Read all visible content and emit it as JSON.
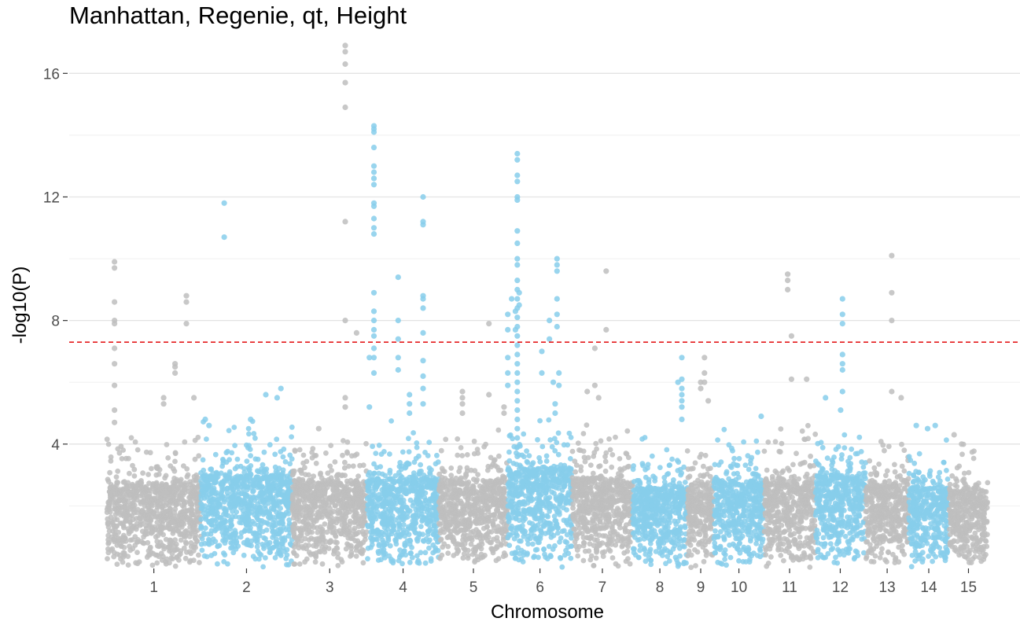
{
  "chart_data": {
    "type": "scatter",
    "title": "Manhattan, Regenie, qt, Height",
    "xlabel": "Chromosome",
    "ylabel": "-log10(P)",
    "ylim": [
      0,
      17
    ],
    "y_ticks": [
      4,
      8,
      12,
      16
    ],
    "threshold": 7.3,
    "threshold_color": "#e41a1c",
    "colors": {
      "odd": "#bebebe",
      "even": "#87ceeb"
    },
    "grid": "horizontal",
    "legend": "none",
    "chromosomes": [
      {
        "label": "1",
        "x_min": 0,
        "x_max": 248,
        "tick": 124,
        "base_max": 2.7,
        "points": [
          [
            20,
            9.9
          ],
          [
            20,
            9.7
          ],
          [
            20,
            8.6
          ],
          [
            20,
            8.0
          ],
          [
            20,
            7.9
          ],
          [
            20,
            7.1
          ],
          [
            20,
            6.6
          ],
          [
            20,
            5.9
          ],
          [
            20,
            5.1
          ],
          [
            20,
            4.7
          ],
          [
            180,
            6.6
          ],
          [
            180,
            6.5
          ],
          [
            180,
            6.3
          ],
          [
            210,
            8.8
          ],
          [
            210,
            8.6
          ],
          [
            210,
            7.9
          ],
          [
            150,
            5.5
          ],
          [
            150,
            5.3
          ],
          [
            230,
            5.5
          ]
        ]
      },
      {
        "label": "2",
        "x_min": 248,
        "x_max": 490,
        "tick": 369,
        "base_max": 3.0,
        "points": [
          [
            310,
            11.8
          ],
          [
            310,
            10.7
          ],
          [
            260,
            4.8
          ],
          [
            270,
            4.6
          ],
          [
            420,
            5.6
          ],
          [
            460,
            5.8
          ],
          [
            450,
            5.5
          ],
          [
            380,
            4.8
          ]
        ]
      },
      {
        "label": "3",
        "x_min": 490,
        "x_max": 688,
        "tick": 589,
        "base_max": 2.8,
        "points": [
          [
            630,
            16.9
          ],
          [
            630,
            16.7
          ],
          [
            630,
            16.3
          ],
          [
            630,
            15.7
          ],
          [
            630,
            14.9
          ],
          [
            630,
            11.2
          ],
          [
            630,
            8.0
          ],
          [
            630,
            5.5
          ],
          [
            630,
            5.2
          ],
          [
            660,
            7.6
          ],
          [
            560,
            4.5
          ]
        ]
      },
      {
        "label": "4",
        "x_min": 688,
        "x_max": 878,
        "tick": 783,
        "base_max": 2.9,
        "points": [
          [
            706,
            14.3
          ],
          [
            706,
            14.2
          ],
          [
            706,
            14.1
          ],
          [
            706,
            13.6
          ],
          [
            706,
            13.0
          ],
          [
            706,
            12.8
          ],
          [
            706,
            12.6
          ],
          [
            706,
            12.4
          ],
          [
            706,
            11.8
          ],
          [
            706,
            11.7
          ],
          [
            706,
            11.3
          ],
          [
            706,
            11.0
          ],
          [
            706,
            10.8
          ],
          [
            706,
            8.9
          ],
          [
            706,
            8.3
          ],
          [
            706,
            8.0
          ],
          [
            706,
            7.7
          ],
          [
            706,
            7.5
          ],
          [
            706,
            7.1
          ],
          [
            706,
            6.8
          ],
          [
            706,
            6.3
          ],
          [
            694,
            6.8
          ],
          [
            694,
            5.2
          ],
          [
            770,
            9.4
          ],
          [
            770,
            8.0
          ],
          [
            770,
            7.4
          ],
          [
            770,
            6.8
          ],
          [
            770,
            6.4
          ],
          [
            800,
            5.6
          ],
          [
            800,
            5.3
          ],
          [
            800,
            5.0
          ],
          [
            836,
            12.0
          ],
          [
            836,
            11.2
          ],
          [
            836,
            11.1
          ],
          [
            836,
            8.8
          ],
          [
            836,
            8.7
          ],
          [
            836,
            8.4
          ],
          [
            836,
            7.6
          ],
          [
            836,
            6.7
          ],
          [
            836,
            6.2
          ],
          [
            836,
            5.8
          ],
          [
            836,
            5.3
          ]
        ]
      },
      {
        "label": "5",
        "x_min": 878,
        "x_max": 1060,
        "tick": 969,
        "base_max": 2.8,
        "points": [
          [
            940,
            5.7
          ],
          [
            940,
            5.5
          ],
          [
            940,
            5.3
          ],
          [
            940,
            5.0
          ],
          [
            1010,
            7.9
          ],
          [
            1010,
            5.6
          ],
          [
            1050,
            5.2
          ],
          [
            1050,
            5.0
          ]
        ]
      },
      {
        "label": "6",
        "x_min": 1060,
        "x_max": 1231,
        "tick": 1145,
        "base_max": 3.2,
        "points": [
          [
            1060,
            6.8
          ],
          [
            1060,
            6.3
          ],
          [
            1060,
            5.9
          ],
          [
            1060,
            7.7
          ],
          [
            1060,
            8.2
          ],
          [
            1070,
            8.7
          ],
          [
            1085,
            13.4
          ],
          [
            1085,
            13.2
          ],
          [
            1085,
            12.7
          ],
          [
            1085,
            12.5
          ],
          [
            1085,
            12.0
          ],
          [
            1085,
            11.9
          ],
          [
            1085,
            10.9
          ],
          [
            1085,
            10.5
          ],
          [
            1085,
            10.0
          ],
          [
            1085,
            9.8
          ],
          [
            1085,
            9.3
          ],
          [
            1085,
            9.0
          ],
          [
            1085,
            8.7
          ],
          [
            1085,
            8.4
          ],
          [
            1085,
            8.1
          ],
          [
            1085,
            7.8
          ],
          [
            1085,
            7.5
          ],
          [
            1085,
            7.2
          ],
          [
            1085,
            6.9
          ],
          [
            1085,
            6.6
          ],
          [
            1085,
            6.3
          ],
          [
            1085,
            6.0
          ],
          [
            1085,
            5.7
          ],
          [
            1085,
            5.4
          ],
          [
            1085,
            5.1
          ],
          [
            1085,
            4.8
          ],
          [
            1085,
            4.5
          ],
          [
            1085,
            4.2
          ],
          [
            1085,
            3.9
          ],
          [
            1085,
            3.6
          ],
          [
            1090,
            8.9
          ],
          [
            1090,
            8.5
          ],
          [
            1080,
            8.3
          ],
          [
            1080,
            7.7
          ],
          [
            1150,
            7.0
          ],
          [
            1150,
            6.3
          ],
          [
            1170,
            8.0
          ],
          [
            1170,
            7.4
          ],
          [
            1190,
            10.0
          ],
          [
            1190,
            9.8
          ],
          [
            1190,
            9.6
          ],
          [
            1190,
            8.7
          ],
          [
            1190,
            8.2
          ],
          [
            1190,
            7.8
          ],
          [
            1180,
            6.0
          ],
          [
            1195,
            6.3
          ],
          [
            1195,
            5.9
          ],
          [
            1185,
            5.3
          ],
          [
            1185,
            5.0
          ]
        ]
      },
      {
        "label": "7",
        "x_min": 1231,
        "x_max": 1390,
        "tick": 1310,
        "base_max": 2.9,
        "points": [
          [
            1320,
            9.6
          ],
          [
            1320,
            7.7
          ],
          [
            1290,
            7.1
          ],
          [
            1290,
            5.9
          ],
          [
            1270,
            5.7
          ],
          [
            1300,
            5.5
          ]
        ]
      },
      {
        "label": "8",
        "x_min": 1390,
        "x_max": 1535,
        "tick": 1462,
        "base_max": 2.6,
        "points": [
          [
            1520,
            6.8
          ],
          [
            1520,
            6.1
          ],
          [
            1520,
            5.8
          ],
          [
            1520,
            5.6
          ],
          [
            1520,
            5.4
          ],
          [
            1520,
            5.2
          ],
          [
            1520,
            4.8
          ],
          [
            1510,
            6.0
          ]
        ]
      },
      {
        "label": "9",
        "x_min": 1535,
        "x_max": 1605,
        "tick": 1570,
        "base_max": 2.7,
        "points": [
          [
            1570,
            6.0
          ],
          [
            1570,
            5.8
          ],
          [
            1580,
            6.8
          ],
          [
            1580,
            6.3
          ],
          [
            1580,
            6.0
          ],
          [
            1590,
            5.4
          ]
        ]
      },
      {
        "label": "10",
        "x_min": 1605,
        "x_max": 1738,
        "tick": 1671,
        "base_max": 2.8,
        "points": [
          [
            1730,
            4.9
          ]
        ]
      },
      {
        "label": "11",
        "x_min": 1738,
        "x_max": 1873,
        "tick": 1805,
        "base_max": 2.8,
        "points": [
          [
            1800,
            9.5
          ],
          [
            1800,
            9.3
          ],
          [
            1800,
            9.0
          ],
          [
            1810,
            7.5
          ],
          [
            1810,
            6.1
          ],
          [
            1850,
            6.1
          ]
        ]
      },
      {
        "label": "12",
        "x_min": 1873,
        "x_max": 2006,
        "tick": 1939,
        "base_max": 3.0,
        "points": [
          [
            1945,
            8.7
          ],
          [
            1945,
            8.2
          ],
          [
            1945,
            7.9
          ],
          [
            1945,
            6.9
          ],
          [
            1945,
            6.6
          ],
          [
            1945,
            6.4
          ],
          [
            1945,
            5.7
          ],
          [
            1940,
            5.1
          ],
          [
            1900,
            5.5
          ]
        ]
      },
      {
        "label": "13",
        "x_min": 2006,
        "x_max": 2120,
        "tick": 2063,
        "base_max": 2.7,
        "points": [
          [
            2075,
            10.1
          ],
          [
            2075,
            8.9
          ],
          [
            2075,
            8.0
          ],
          [
            2075,
            5.7
          ],
          [
            2100,
            5.5
          ]
        ]
      },
      {
        "label": "14",
        "x_min": 2120,
        "x_max": 2227,
        "tick": 2173,
        "base_max": 2.6,
        "points": [
          [
            2140,
            4.6
          ],
          [
            2170,
            4.5
          ],
          [
            2190,
            4.6
          ]
        ]
      },
      {
        "label": "15",
        "x_min": 2227,
        "x_max": 2329,
        "tick": 2278,
        "base_max": 2.5,
        "points": [
          [
            2240,
            4.3
          ],
          [
            2260,
            4.0
          ]
        ]
      }
    ]
  }
}
